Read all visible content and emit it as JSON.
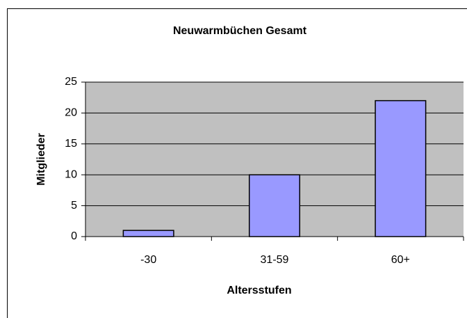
{
  "chart_data": {
    "type": "bar",
    "title": "Neuwarmbüchen Gesamt",
    "x_label": "Altersstufen",
    "y_label": "Mitglieder",
    "categories": [
      "-30",
      "31-59",
      "60+"
    ],
    "values": [
      1,
      10,
      22
    ],
    "color": "#9999ff",
    "ylim": [
      0,
      25
    ],
    "yticks": [
      0,
      5,
      10,
      15,
      20,
      25
    ],
    "grid": true
  }
}
